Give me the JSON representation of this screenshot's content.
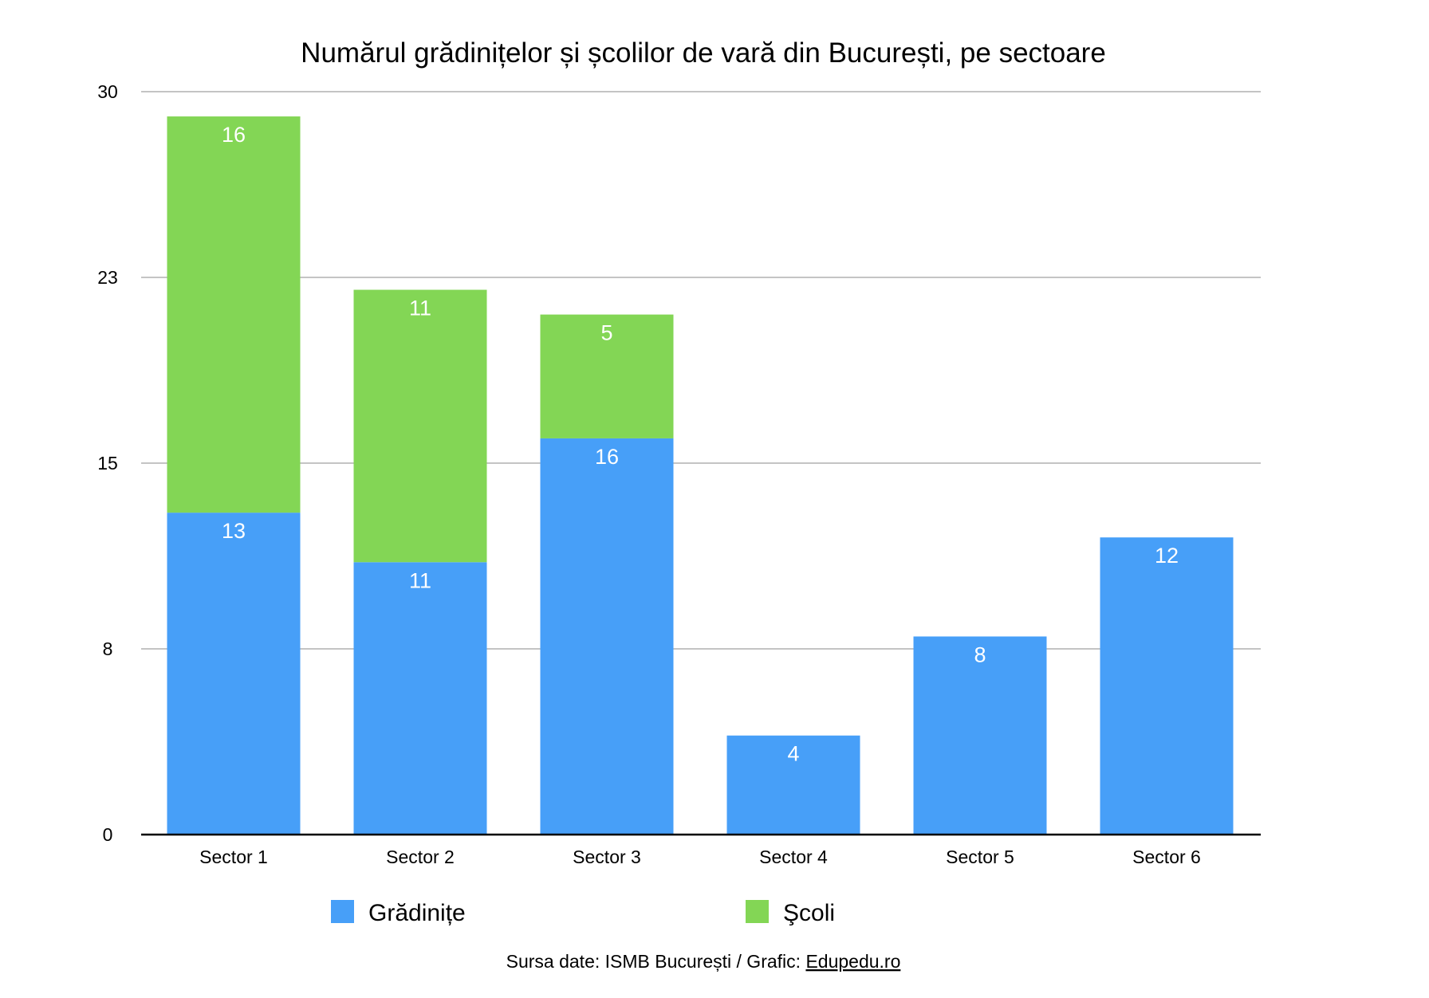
{
  "chart_data": {
    "type": "bar",
    "stacked": true,
    "title": "Numărul grădinițelor și școlilor de vară din București, pe sectoare",
    "categories": [
      "Sector 1",
      "Sector 2",
      "Sector 3",
      "Sector 4",
      "Sector 5",
      "Sector 6"
    ],
    "series": [
      {
        "name": "Grădinițe",
        "color": "#479FF8",
        "values": [
          13,
          11,
          16,
          4,
          8,
          12
        ]
      },
      {
        "name": "Şcoli",
        "color": "#83D655",
        "values": [
          16,
          11,
          5,
          0,
          0,
          0
        ]
      }
    ],
    "ylim": [
      0,
      30
    ],
    "yticks": [
      0,
      7.5,
      15,
      22.5,
      30
    ],
    "ytick_labels": [
      "0",
      "8",
      "15",
      "23",
      "30"
    ],
    "grid": true,
    "legend_position": "bottom",
    "xlabel": "",
    "ylabel": ""
  },
  "source": {
    "prefix": "Sursa date: ISMB București / Grafic: ",
    "link": "Edupedu.ro"
  }
}
